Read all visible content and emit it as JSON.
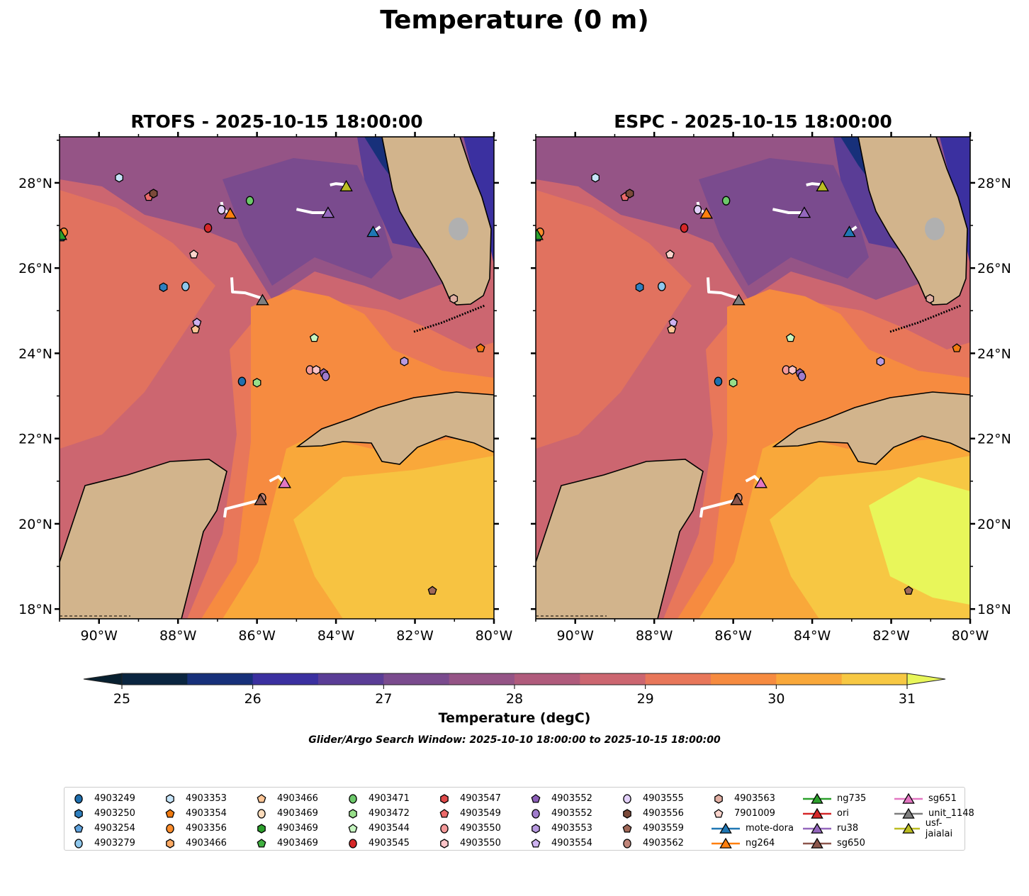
{
  "title": "Temperature (0 m)",
  "panels": [
    {
      "title": "RTOFS - 2025-10-15 18:00:00",
      "model": "RTOFS"
    },
    {
      "title": "ESPC - 2025-10-15 18:00:00",
      "model": "ESPC"
    }
  ],
  "axes": {
    "lon_ticks": [
      "90°W",
      "88°W",
      "86°W",
      "84°W",
      "82°W",
      "80°W"
    ],
    "lon_values": [
      -90,
      -88,
      -86,
      -84,
      -82,
      -80
    ],
    "lat_ticks": [
      "28°N",
      "26°N",
      "24°N",
      "22°N",
      "20°N",
      "18°N"
    ],
    "lat_values": [
      28,
      26,
      24,
      22,
      20,
      18
    ],
    "lon_range": [
      -91,
      -80
    ],
    "lat_range": [
      17.77,
      29.08
    ]
  },
  "colorbar": {
    "label": "Temperature (degC)",
    "ticks": [
      "25",
      "26",
      "27",
      "28",
      "29",
      "30",
      "31"
    ],
    "range": [
      25,
      31
    ],
    "step": 0.5,
    "colors": [
      "#0a2540",
      "#17307a",
      "#3b30a0",
      "#5a3d96",
      "#7a4b8e",
      "#955486",
      "#b05b7c",
      "#cc6670",
      "#e8775a",
      "#f68b40",
      "#f9a83a",
      "#f7c843"
    ],
    "under_color": "#082030",
    "over_color": "#e8f65a"
  },
  "search_window": "Glider/Argo Search Window: 2025-10-10 18:00:00 to 2025-10-15 18:00:00",
  "legend": [
    {
      "label": "4903249",
      "shape": "circle",
      "color": "#1f6fae"
    },
    {
      "label": "4903250",
      "shape": "hexagon",
      "color": "#2f7fbf"
    },
    {
      "label": "4903254",
      "shape": "pentagon",
      "color": "#5fa2dd"
    },
    {
      "label": "4903279",
      "shape": "circle",
      "color": "#8fc7ec"
    },
    {
      "label": "4903353",
      "shape": "hexagon",
      "color": "#c6e4f8"
    },
    {
      "label": "4903354",
      "shape": "pentagon",
      "color": "#f07a10"
    },
    {
      "label": "4903356",
      "shape": "circle",
      "color": "#fd8d2c"
    },
    {
      "label": "4903466",
      "shape": "hexagon",
      "color": "#fdaa64"
    },
    {
      "label": "4903466",
      "shape": "pentagon",
      "color": "#fdc596"
    },
    {
      "label": "4903469",
      "shape": "circle",
      "color": "#fddcbc"
    },
    {
      "label": "4903469",
      "shape": "hexagon",
      "color": "#2ca02c"
    },
    {
      "label": "4903469",
      "shape": "pentagon",
      "color": "#40b040"
    },
    {
      "label": "4903471",
      "shape": "circle",
      "color": "#6cc86a"
    },
    {
      "label": "4903472",
      "shape": "hexagon",
      "color": "#98df8a"
    },
    {
      "label": "4903544",
      "shape": "pentagon",
      "color": "#c6f5c0"
    },
    {
      "label": "4903545",
      "shape": "circle",
      "color": "#d62728"
    },
    {
      "label": "4903547",
      "shape": "hexagon",
      "color": "#e04a4a"
    },
    {
      "label": "4903549",
      "shape": "pentagon",
      "color": "#ec6a6a"
    },
    {
      "label": "4903550",
      "shape": "circle",
      "color": "#f49a9a"
    },
    {
      "label": "4903550",
      "shape": "hexagon",
      "color": "#fcc4c8"
    },
    {
      "label": "4903552",
      "shape": "pentagon",
      "color": "#8c5fb8"
    },
    {
      "label": "4903552",
      "shape": "circle",
      "color": "#a07ccc"
    },
    {
      "label": "4903553",
      "shape": "hexagon",
      "color": "#b89ae0"
    },
    {
      "label": "4903554",
      "shape": "pentagon",
      "color": "#cdb2f0"
    },
    {
      "label": "4903555",
      "shape": "circle",
      "color": "#e2d0fa"
    },
    {
      "label": "4903556",
      "shape": "hexagon",
      "color": "#7b4a3a"
    },
    {
      "label": "4903559",
      "shape": "pentagon",
      "color": "#a06858"
    },
    {
      "label": "4903562",
      "shape": "circle",
      "color": "#c0857a"
    },
    {
      "label": "4903563",
      "shape": "hexagon",
      "color": "#e2b0a4"
    },
    {
      "label": "7901009",
      "shape": "pentagon",
      "color": "#fcd4cc"
    },
    {
      "label": "mote-dora",
      "shape": "triangle",
      "color": "#1f77b4",
      "line": true
    },
    {
      "label": "ng264",
      "shape": "triangle",
      "color": "#ff7f0e",
      "line": true
    },
    {
      "label": "ng735",
      "shape": "triangle",
      "color": "#2ca02c",
      "line": true
    },
    {
      "label": "ori",
      "shape": "triangle",
      "color": "#d62728",
      "line": true
    },
    {
      "label": "ru38",
      "shape": "triangle",
      "color": "#9467bd",
      "line": true
    },
    {
      "label": "sg650",
      "shape": "triangle",
      "color": "#8c564b",
      "line": true
    },
    {
      "label": "sg651",
      "shape": "triangle",
      "color": "#e377c2",
      "line": true
    },
    {
      "label": "unit_1148",
      "shape": "triangle",
      "color": "#7f7f7f",
      "line": true
    },
    {
      "label": "usf-jaialai",
      "shape": "triangle",
      "color": "#bcbd22",
      "line": true
    }
  ],
  "platforms": [
    {
      "id": "4903353",
      "legend": 4,
      "lon": -89.49,
      "lat": 28.12
    },
    {
      "id": "4903549",
      "legend": 17,
      "lon": -88.74,
      "lat": 27.67
    },
    {
      "id": "4903556",
      "legend": 25,
      "lon": -88.62,
      "lat": 27.75
    },
    {
      "id": "4903555",
      "legend": 24,
      "lon": -86.9,
      "lat": 27.37
    },
    {
      "id": "4903471",
      "legend": 12,
      "lon": -86.18,
      "lat": 27.58
    },
    {
      "id": "4903545",
      "legend": 15,
      "lon": -87.24,
      "lat": 26.94
    },
    {
      "id": "7901009",
      "legend": 29,
      "lon": -87.6,
      "lat": 26.32
    },
    {
      "id": "4903250",
      "legend": 1,
      "lon": -88.37,
      "lat": 25.55
    },
    {
      "id": "4903279",
      "legend": 3,
      "lon": -87.81,
      "lat": 25.57
    },
    {
      "id": "4903554",
      "legend": 23,
      "lon": -87.52,
      "lat": 24.72
    },
    {
      "id": "4903466",
      "legend": 8,
      "lon": -87.56,
      "lat": 24.56
    },
    {
      "id": "4903544",
      "legend": 14,
      "lon": -84.55,
      "lat": 24.36
    },
    {
      "id": "4903354",
      "legend": 5,
      "lon": -80.34,
      "lat": 24.12
    },
    {
      "id": "4903553",
      "legend": 22,
      "lon": -82.27,
      "lat": 23.81
    },
    {
      "id": "4903550",
      "legend": 18,
      "lon": -84.66,
      "lat": 23.61
    },
    {
      "id": "4903550",
      "legend": 19,
      "lon": -84.5,
      "lat": 23.61
    },
    {
      "id": "4903552",
      "legend": 20,
      "lon": -84.31,
      "lat": 23.54
    },
    {
      "id": "4903552",
      "legend": 21,
      "lon": -84.26,
      "lat": 23.46
    },
    {
      "id": "4903249",
      "legend": 0,
      "lon": -86.38,
      "lat": 23.34
    },
    {
      "id": "4903472",
      "legend": 13,
      "lon": -86.0,
      "lat": 23.31
    },
    {
      "id": "4903562",
      "legend": 27,
      "lon": -85.87,
      "lat": 20.61
    },
    {
      "id": "4903559",
      "legend": 26,
      "lon": -81.56,
      "lat": 18.43
    },
    {
      "id": "4903254",
      "legend": 2,
      "lon": -90.95,
      "lat": 26.72
    },
    {
      "id": "4903356",
      "legend": 6,
      "lon": -90.89,
      "lat": 26.84
    },
    {
      "id": "4903563",
      "legend": 28,
      "lon": -81.02,
      "lat": 25.28
    },
    {
      "id": "ng735",
      "legend": 32,
      "lon": -90.97,
      "lat": 26.78,
      "track": []
    },
    {
      "id": "ng264",
      "legend": 31,
      "lon": -86.68,
      "lat": 27.28,
      "track": [
        [
          -86.9,
          27.55
        ],
        [
          -86.86,
          27.37
        ],
        [
          -86.68,
          27.28
        ]
      ]
    },
    {
      "id": "usf-jaialai",
      "legend": 38,
      "lon": -83.74,
      "lat": 27.92,
      "track": [
        [
          -84.15,
          27.95
        ],
        [
          -84.0,
          27.98
        ],
        [
          -83.8,
          27.96
        ]
      ]
    },
    {
      "id": "ru38",
      "legend": 34,
      "lon": -84.2,
      "lat": 27.3,
      "track": [
        [
          -85.0,
          27.38
        ],
        [
          -84.6,
          27.3
        ],
        [
          -84.2,
          27.3
        ]
      ]
    },
    {
      "id": "mote-dora",
      "legend": 30,
      "lon": -83.06,
      "lat": 26.85,
      "track": [
        [
          -83.06,
          26.85
        ],
        [
          -82.88,
          26.97
        ]
      ]
    },
    {
      "id": "unit_1148",
      "legend": 37,
      "lon": -85.86,
      "lat": 25.25,
      "track": [
        [
          -86.64,
          25.78
        ],
        [
          -86.62,
          25.44
        ],
        [
          -86.3,
          25.42
        ],
        [
          -85.9,
          25.3
        ]
      ]
    },
    {
      "id": "sg651",
      "legend": 36,
      "lon": -85.3,
      "lat": 20.96,
      "track": [
        [
          -85.68,
          21.0
        ],
        [
          -85.46,
          21.11
        ],
        [
          -85.3,
          20.96
        ]
      ]
    },
    {
      "id": "sg650",
      "legend": 35,
      "lon": -85.91,
      "lat": 20.56,
      "track": [
        [
          -86.82,
          20.15
        ],
        [
          -86.79,
          20.35
        ],
        [
          -85.91,
          20.56
        ]
      ]
    }
  ]
}
